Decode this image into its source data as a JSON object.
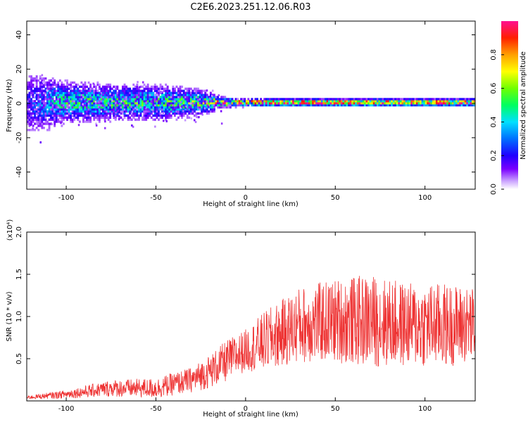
{
  "title": "C2E6.2023.251.12.06.R03",
  "chart_data": [
    {
      "type": "heatmap",
      "xlabel": "Height of straight line (km)",
      "ylabel": "Frequency (Hz)",
      "xlim": [
        -122,
        128
      ],
      "ylim": [
        -50,
        48
      ],
      "xticks": [
        -100,
        -50,
        0,
        50,
        100
      ],
      "yticks": [
        -40,
        -20,
        0,
        20,
        40
      ],
      "colorbar": {
        "label": "Normalized spectral amplitude",
        "range": [
          0,
          1
        ],
        "ticks": [
          0.0,
          0.2,
          0.4,
          0.6,
          0.8
        ]
      },
      "band_profile": {
        "x": [
          -122,
          -100,
          -75,
          -50,
          -35,
          -20,
          -15,
          0,
          50,
          100,
          128
        ],
        "half_width_hz": [
          14,
          8,
          7,
          7,
          6,
          4,
          2,
          1.5,
          1.5,
          1.5,
          1.5
        ],
        "peak_amplitude": [
          0.2,
          0.5,
          0.5,
          0.5,
          0.55,
          0.6,
          0.9,
          0.95,
          0.95,
          0.9,
          0.9
        ]
      }
    },
    {
      "type": "line",
      "xlabel": "Height of straight line (km)",
      "ylabel": "SNR (10 * v/v)",
      "y_scale_note": "(x10⁴)",
      "xlim": [
        -122,
        128
      ],
      "ylim": [
        0,
        2.0
      ],
      "xticks": [
        -100,
        -50,
        0,
        50,
        100
      ],
      "yticks": [
        0.5,
        1.0,
        1.5,
        2.0
      ],
      "color": "#ee3333",
      "envelope": {
        "x": [
          -122,
          -100,
          -75,
          -50,
          -30,
          -20,
          -10,
          0,
          10,
          20,
          30,
          50,
          70,
          90,
          110,
          128
        ],
        "mean": [
          0.04,
          0.08,
          0.15,
          0.15,
          0.25,
          0.35,
          0.48,
          0.6,
          0.7,
          0.8,
          0.9,
          0.95,
          0.95,
          0.9,
          0.9,
          0.9
        ],
        "amplitude": [
          0.02,
          0.05,
          0.1,
          0.12,
          0.15,
          0.2,
          0.25,
          0.25,
          0.35,
          0.4,
          0.45,
          0.5,
          0.55,
          0.5,
          0.5,
          0.45
        ]
      }
    }
  ]
}
